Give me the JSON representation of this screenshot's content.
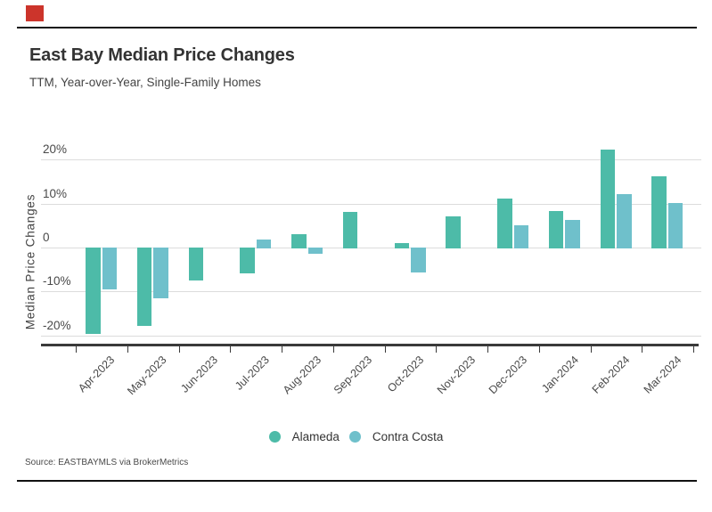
{
  "page": {
    "background": "#ffffff",
    "top_marker_color": "#cc342b",
    "divider_color": "#111111"
  },
  "chart_data": {
    "type": "bar",
    "title": "East Bay Median Price Changes",
    "subtitle": "TTM, Year-over-Year, Single-Family Homes",
    "ylabel": "Median Price Changes",
    "xlabel": "",
    "units": "percent_yoy_change",
    "categories": [
      "Apr-2023",
      "May-2023",
      "Jun-2023",
      "Jul-2023",
      "Aug-2023",
      "Sep-2023",
      "Oct-2023",
      "Nov-2023",
      "Dec-2023",
      "Jan-2024",
      "Feb-2024",
      "Mar-2024"
    ],
    "series": [
      {
        "name": "Alameda",
        "color": "#4dbba8",
        "values": [
          -19.5,
          -17.6,
          -7.3,
          -5.7,
          3.0,
          8.0,
          1.0,
          7.0,
          11.2,
          8.2,
          22.3,
          16.2
        ]
      },
      {
        "name": "Contra Costa",
        "color": "#6fc0cb",
        "values": [
          -9.4,
          -11.4,
          null,
          1.9,
          -1.3,
          null,
          -5.5,
          null,
          5.0,
          6.2,
          12.2,
          10.1
        ]
      }
    ],
    "y_ticks": [
      {
        "label": "20%",
        "value": 20
      },
      {
        "label": "10%",
        "value": 10
      },
      {
        "label": "0",
        "value": 0
      },
      {
        "label": "-10%",
        "value": -10
      },
      {
        "label": "-20%",
        "value": -20
      }
    ],
    "ylim": [
      -22.5,
      24
    ],
    "grid": true,
    "legend_position": "bottom"
  },
  "source": {
    "label": "Source:",
    "text": "EASTBAYMLS via BrokerMetrics"
  }
}
